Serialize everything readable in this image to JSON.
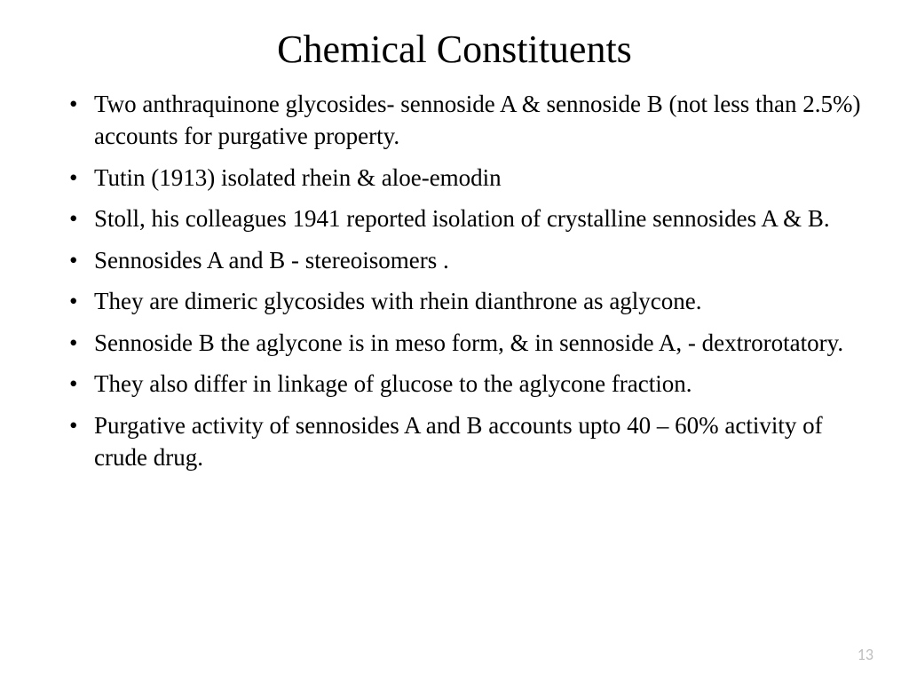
{
  "title": "Chemical Constituents",
  "bullets": [
    "Two anthraquinone glycosides- sennoside A & sennoside B (not less than 2.5%) accounts for purgative property.",
    "Tutin (1913) isolated rhein & aloe-emodin",
    "Stoll, his colleagues 1941 reported isolation of crystalline sennosides A &  B.",
    "Sennosides A and B - stereoisomers .",
    "They are dimeric glycosides with rhein  dianthrone as aglycone.",
    "Sennoside B the aglycone is in meso form, & in sennoside A, - dextrorotatory.",
    "They also differ in linkage of glucose to the aglycone fraction.",
    "Purgative  activity of sennosides A and B accounts upto 40 – 60% activity of crude drug."
  ],
  "page_number": "13",
  "style": {
    "background_color": "#ffffff",
    "text_color": "#000000",
    "page_number_color": "#bfbfbf",
    "title_fontsize": 44,
    "body_fontsize": 27,
    "font_family": "Times New Roman"
  }
}
